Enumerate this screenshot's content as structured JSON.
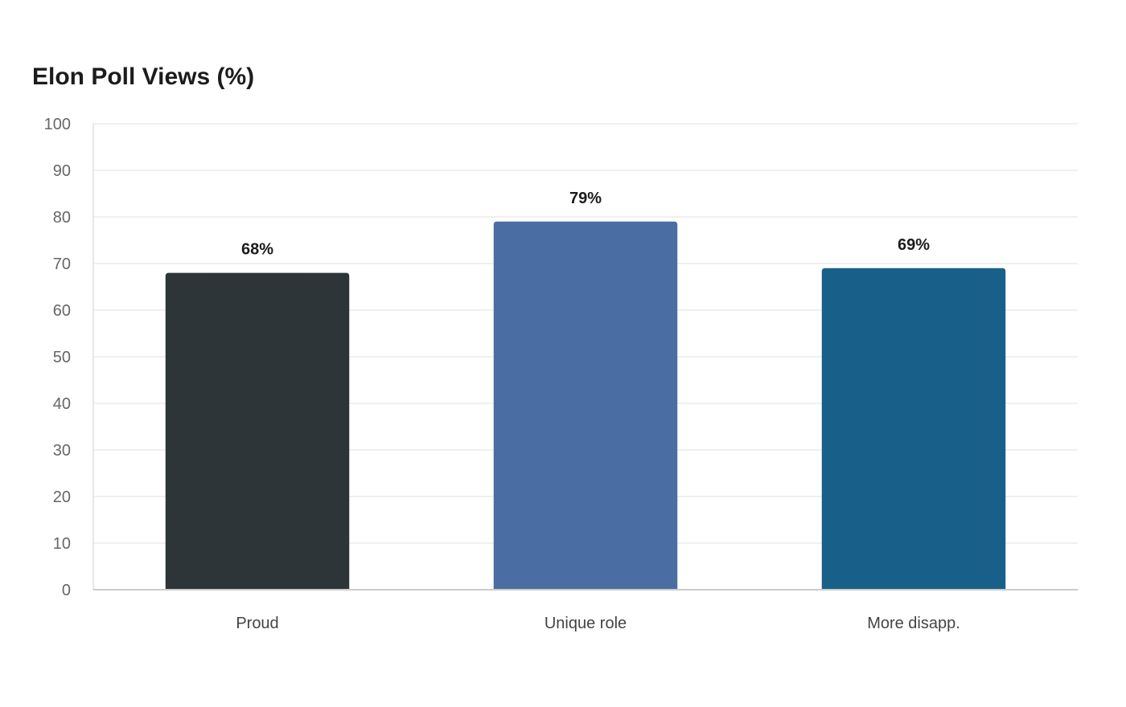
{
  "chart_data": {
    "type": "bar",
    "title": "Elon Poll Views (%)",
    "xlabel": "",
    "ylabel": "",
    "categories": [
      "Proud",
      "Unique role",
      "More disapp."
    ],
    "values": [
      68,
      79,
      69
    ],
    "data_labels": [
      "68%",
      "79%",
      "69%"
    ],
    "colors": [
      "#2e3538",
      "#4a6ea3",
      "#186089"
    ],
    "ylim": [
      0,
      100
    ],
    "yticks": [
      0,
      10,
      20,
      30,
      40,
      50,
      60,
      70,
      80,
      90,
      100
    ],
    "grid": true,
    "legend": "none"
  }
}
